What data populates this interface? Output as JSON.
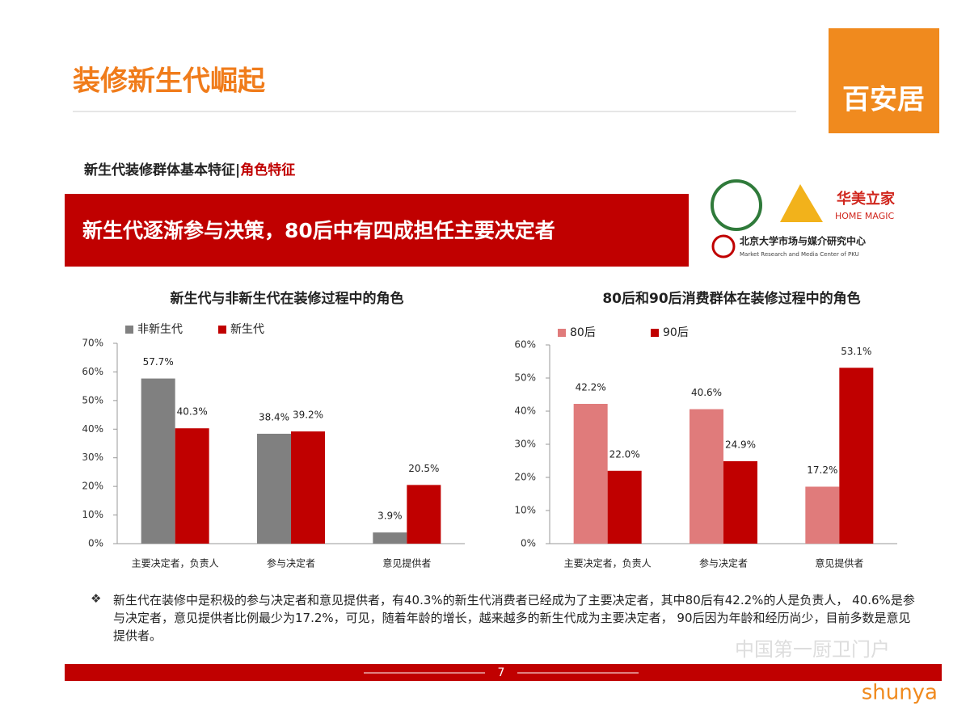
{
  "header": {
    "title": "装修新生代崛起",
    "logo": "百安居"
  },
  "section": {
    "label": "新生代装修群体基本特征|",
    "highlight": "角色特征"
  },
  "banner": "新生代逐渐参与决策，80后中有四成担任主要决定者",
  "partners": {
    "name1": "华美立家",
    "name1_en": "HOME MAGIC",
    "name2": "北京大学市场与媒介研究中心",
    "name2_en": "Market Research and Media Center of PKU"
  },
  "chart_data": [
    {
      "type": "bar",
      "title": "新生代与非新生代在装修过程中的角色",
      "categories": [
        "主要决定者，负责人",
        "参与决定者",
        "意见提供者"
      ],
      "series": [
        {
          "name": "非新生代",
          "color": "#808080",
          "values": [
            57.7,
            38.4,
            3.9
          ],
          "value_labels": [
            "57.7%",
            "38.4%",
            "3.9%"
          ]
        },
        {
          "name": "新生代",
          "color": "#c00000",
          "values": [
            40.3,
            39.2,
            20.5
          ],
          "value_labels": [
            "40.3%",
            "39.2%",
            "20.5%"
          ]
        }
      ],
      "ylim": [
        0,
        70
      ],
      "yticks": [
        {
          "value": 0,
          "label": "0%"
        },
        {
          "value": 10,
          "label": "10%"
        },
        {
          "value": 20,
          "label": "20%"
        },
        {
          "value": 30,
          "label": "30%"
        },
        {
          "value": 40,
          "label": "40%"
        },
        {
          "value": 50,
          "label": "50%"
        },
        {
          "value": 60,
          "label": "60%"
        },
        {
          "value": 70,
          "label": "70%"
        }
      ],
      "grid": false
    },
    {
      "type": "bar",
      "title": "80后和90后消费群体在装修过程中的角色",
      "categories": [
        "主要决定者，负责人",
        "参与决定者",
        "意见提供者"
      ],
      "series": [
        {
          "name": "80后",
          "color": "#e07b7b",
          "values": [
            42.2,
            40.6,
            17.2
          ],
          "value_labels": [
            "42.2%",
            "40.6%",
            "17.2%"
          ]
        },
        {
          "name": "90后",
          "color": "#c00000",
          "values": [
            22.0,
            24.9,
            53.1
          ],
          "value_labels": [
            "22.0%",
            "24.9%",
            "53.1%"
          ]
        }
      ],
      "ylim": [
        0,
        60
      ],
      "yticks": [
        {
          "value": 0,
          "label": "0%"
        },
        {
          "value": 10,
          "label": "10%"
        },
        {
          "value": 20,
          "label": "20%"
        },
        {
          "value": 30,
          "label": "30%"
        },
        {
          "value": 40,
          "label": "40%"
        },
        {
          "value": 50,
          "label": "50%"
        },
        {
          "value": 60,
          "label": "60%"
        }
      ],
      "grid": false
    }
  ],
  "note": "新生代在装修中是积极的参与决定者和意见提供者，有40.3%的新生代消费者已经成为了主要决定者，其中80后有42.2%的人是负责人， 40.6%是参与决定者，意见提供者比例最少为17.2%，可见，随着年龄的增长，越来越多的新生代成为主要决定者， 90后因为年龄和经历尚少，目前多数是意见提供者。",
  "page_number": "7",
  "watermark": "中国第一厨卫门户",
  "footer_brand": "shunya"
}
